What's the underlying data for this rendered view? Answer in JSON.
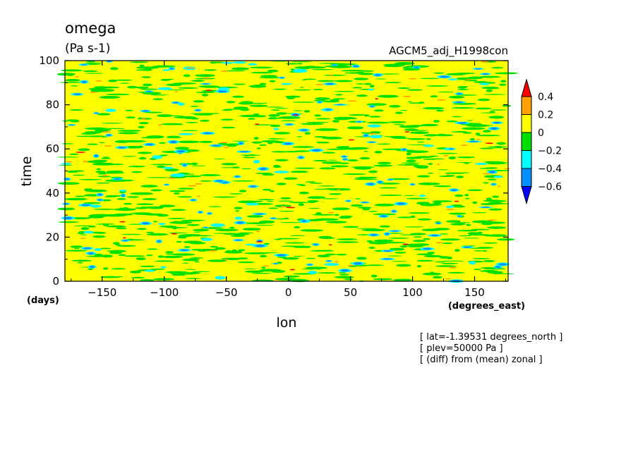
{
  "chart_data": {
    "type": "heatmap",
    "title": "omega",
    "units": "(Pa s-1)",
    "dataset": "AGCM5_adj_H1998con",
    "xlabel": "lon",
    "x_units": "(degrees_east)",
    "ylabel": "time",
    "y_units": "(days)",
    "xlim": [
      -180,
      177
    ],
    "ylim": [
      0,
      100
    ],
    "x_ticks": [
      -150,
      -100,
      -50,
      0,
      50,
      100,
      150
    ],
    "y_ticks": [
      0,
      20,
      40,
      60,
      80,
      100
    ],
    "colorbar": {
      "labels": [
        "0.4",
        "0.2",
        "0",
        "-0.2",
        "-0.4",
        "-0.6"
      ],
      "levels": [
        0.4,
        0.2,
        0,
        -0.2,
        -0.4,
        -0.6
      ],
      "colors": [
        "#ff0000",
        "#ffa000",
        "#ffff00",
        "#00e000",
        "#00ffff",
        "#0090ff",
        "#0000ff"
      ]
    },
    "field_pattern": "mostly values between -0.2 and 0.2 with scattered negative patches to -0.6 and a few positive patches to 0.4, elongated zonally",
    "annotations": [
      "[ lat=-1.39531 degrees_north ]",
      "[ plev=50000 Pa ]",
      "[ (diff) from (mean) zonal ]"
    ]
  }
}
